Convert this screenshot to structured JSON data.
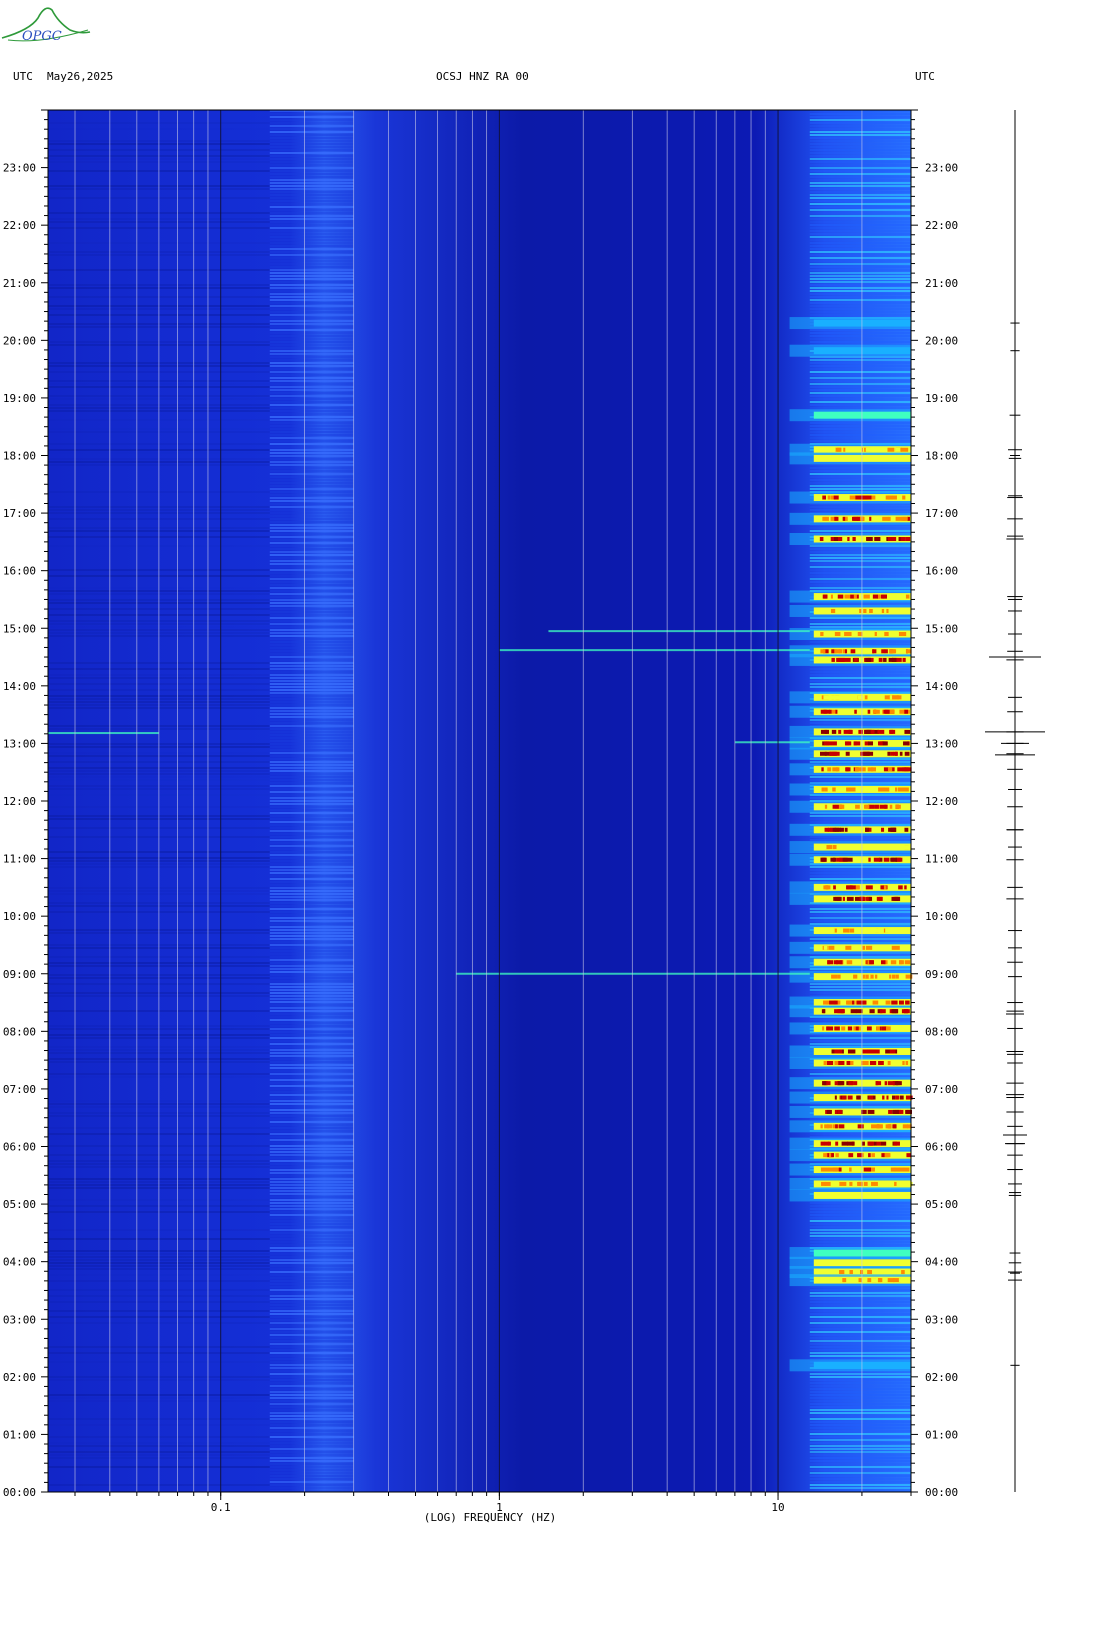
{
  "logo": {
    "text": "OPGC",
    "color": "#2e9a3a",
    "text_color": "#2a4fbf"
  },
  "header": {
    "left_tz": "UTC",
    "date": "May26,2025",
    "station": "OCSJ HNZ RA 00",
    "right_tz": "UTC"
  },
  "chart_data": {
    "type": "heatmap",
    "title": "OCSJ HNZ RA 00",
    "xlabel": "(LOG) FREQUENCY (HZ)",
    "x_scale": "log",
    "xlim": [
      0.024,
      30
    ],
    "x_ticks": [
      0.1,
      1,
      10
    ],
    "x_tick_labels": [
      "0.1",
      "1",
      "10"
    ],
    "ylim_hours": [
      0,
      24
    ],
    "y_tick_labels": [
      "00:00",
      "01:00",
      "02:00",
      "03:00",
      "04:00",
      "05:00",
      "06:00",
      "07:00",
      "08:00",
      "09:00",
      "10:00",
      "11:00",
      "12:00",
      "13:00",
      "14:00",
      "15:00",
      "16:00",
      "17:00",
      "18:00",
      "19:00",
      "20:00",
      "21:00",
      "22:00",
      "23:00"
    ],
    "background_color": "#1c2fd0",
    "colormap": [
      "#0a1aa8",
      "#1e40ff",
      "#19b0ff",
      "#3fffc0",
      "#f0ff30",
      "#ff8a00",
      "#c80000",
      "#8a0000"
    ],
    "high_power_band_hz": [
      13,
      30
    ],
    "secondary_band_hz": [
      0.15,
      0.3
    ],
    "events": [
      {
        "hour": 20.3,
        "level": 2
      },
      {
        "hour": 19.82,
        "level": 2
      },
      {
        "hour": 18.7,
        "level": 3
      },
      {
        "hour": 18.1,
        "level": 5
      },
      {
        "hour": 17.95,
        "level": 4
      },
      {
        "hour": 17.27,
        "level": 6
      },
      {
        "hour": 16.9,
        "level": 6
      },
      {
        "hour": 16.55,
        "level": 7
      },
      {
        "hour": 15.55,
        "level": 6
      },
      {
        "hour": 15.3,
        "level": 5
      },
      {
        "hour": 14.9,
        "level": 5
      },
      {
        "hour": 14.6,
        "level": 6
      },
      {
        "hour": 14.45,
        "level": 7
      },
      {
        "hour": 13.8,
        "level": 5
      },
      {
        "hour": 13.55,
        "level": 6
      },
      {
        "hour": 13.2,
        "level": 7
      },
      {
        "hour": 13.0,
        "level": 7
      },
      {
        "hour": 12.82,
        "level": 7
      },
      {
        "hour": 12.55,
        "level": 6
      },
      {
        "hour": 12.2,
        "level": 5
      },
      {
        "hour": 11.9,
        "level": 6
      },
      {
        "hour": 11.5,
        "level": 7
      },
      {
        "hour": 11.2,
        "level": 5
      },
      {
        "hour": 10.98,
        "level": 7
      },
      {
        "hour": 10.5,
        "level": 6
      },
      {
        "hour": 10.3,
        "level": 7
      },
      {
        "hour": 9.75,
        "level": 5
      },
      {
        "hour": 9.45,
        "level": 5
      },
      {
        "hour": 9.2,
        "level": 6
      },
      {
        "hour": 8.95,
        "level": 5
      },
      {
        "hour": 8.5,
        "level": 6
      },
      {
        "hour": 8.35,
        "level": 7
      },
      {
        "hour": 8.05,
        "level": 6
      },
      {
        "hour": 7.65,
        "level": 7
      },
      {
        "hour": 7.45,
        "level": 6
      },
      {
        "hour": 7.1,
        "level": 7
      },
      {
        "hour": 6.85,
        "level": 7
      },
      {
        "hour": 6.6,
        "level": 7
      },
      {
        "hour": 6.35,
        "level": 6
      },
      {
        "hour": 6.05,
        "level": 7
      },
      {
        "hour": 5.85,
        "level": 6
      },
      {
        "hour": 5.6,
        "level": 6
      },
      {
        "hour": 5.35,
        "level": 5
      },
      {
        "hour": 5.15,
        "level": 4
      },
      {
        "hour": 4.15,
        "level": 3
      },
      {
        "hour": 3.98,
        "level": 4
      },
      {
        "hour": 3.82,
        "level": 5
      },
      {
        "hour": 3.68,
        "level": 5
      },
      {
        "hour": 2.2,
        "level": 2
      }
    ],
    "broadband_lines": [
      {
        "hour": 14.95,
        "from_hz": 1.5,
        "level": 2
      },
      {
        "hour": 14.62,
        "from_hz": 1.0,
        "level": 2
      },
      {
        "hour": 13.02,
        "from_hz": 7.0,
        "level": 6
      },
      {
        "hour": 9.0,
        "from_hz": 0.7,
        "level": 2
      },
      {
        "hour": 13.18,
        "from_hz": 0.024,
        "to_hz": 0.06,
        "level": 2
      }
    ],
    "trace_events": [
      {
        "hour": 14.5,
        "amp": 26
      },
      {
        "hour": 13.2,
        "amp": 30
      },
      {
        "hour": 12.8,
        "amp": 20
      },
      {
        "hour": 13.0,
        "amp": 14
      },
      {
        "hour": 6.2,
        "amp": 12
      },
      {
        "hour": 6.05,
        "amp": 10
      },
      {
        "hour": 16.6,
        "amp": 8
      },
      {
        "hour": 15.5,
        "amp": 7
      },
      {
        "hour": 11.5,
        "amp": 8
      },
      {
        "hour": 8.3,
        "amp": 9
      },
      {
        "hour": 7.6,
        "amp": 8
      },
      {
        "hour": 6.9,
        "amp": 9
      },
      {
        "hour": 5.6,
        "amp": 7
      },
      {
        "hour": 5.2,
        "amp": 6
      },
      {
        "hour": 3.8,
        "amp": 5
      },
      {
        "hour": 17.3,
        "amp": 7
      },
      {
        "hour": 18.0,
        "amp": 5
      }
    ]
  }
}
